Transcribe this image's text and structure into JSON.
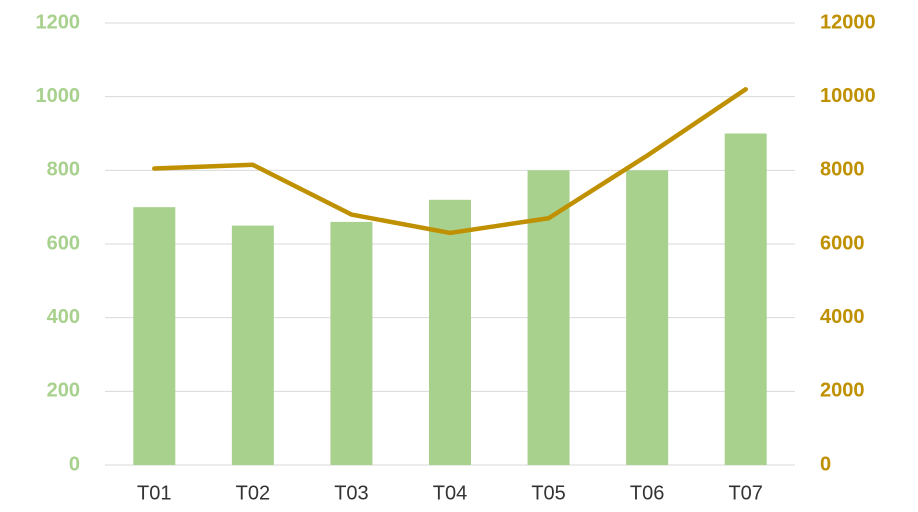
{
  "chart_data": {
    "type": "bar",
    "categories": [
      "T01",
      "T02",
      "T03",
      "T04",
      "T05",
      "T06",
      "T07"
    ],
    "series": [
      {
        "type": "bar",
        "color": "#a9d18e",
        "values": [
          700,
          650,
          660,
          720,
          800,
          800,
          900
        ]
      },
      {
        "type": "line",
        "axis": "y2",
        "color": "#bf9000",
        "values": [
          8050,
          8150,
          6800,
          6300,
          6700,
          8400,
          10200
        ]
      }
    ],
    "ylim": [
      0,
      1200
    ],
    "yticks": [
      0,
      200,
      400,
      600,
      800,
      1000,
      1200
    ],
    "y2lim": [
      0,
      12000
    ],
    "y2ticks": [
      0,
      2000,
      4000,
      6000,
      8000,
      10000,
      12000
    ],
    "grid": true
  }
}
